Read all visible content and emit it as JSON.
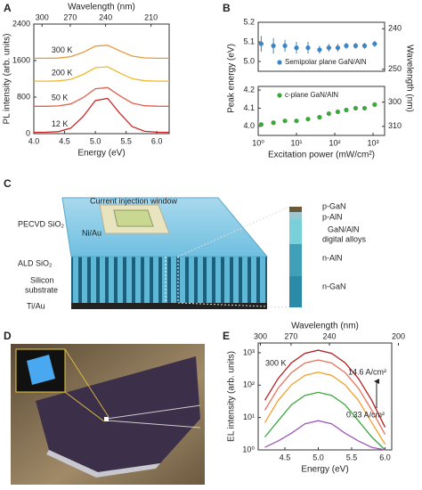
{
  "chart_data": [
    {
      "panel": "A",
      "type": "line",
      "xlabel": "Energy (eV)",
      "x2label": "Wavelength (nm)",
      "ylabel": "PL intensity (arb. units)",
      "xlim": [
        4.0,
        6.2
      ],
      "xticks": [
        {
          "value": 4,
          "label": "4.0"
        },
        4.5,
        {
          "value": 5,
          "label": "5.0"
        },
        5.5,
        {
          "value": 6,
          "label": "6.0"
        }
      ],
      "x2ticks": [
        300,
        270,
        240,
        210
      ],
      "ylim": [
        0,
        2400
      ],
      "yticks": [
        0,
        800,
        1600,
        2400
      ],
      "legend": "inline",
      "x": [
        4.0,
        4.2,
        4.4,
        4.6,
        4.8,
        5.0,
        5.2,
        5.4,
        5.6,
        5.8,
        6.0,
        6.2
      ],
      "series": [
        {
          "name": "300 K",
          "color": "#e89a3c",
          "values": [
            1650,
            1650,
            1655,
            1685,
            1780,
            1917,
            1935,
            1810,
            1698,
            1658,
            1650,
            1650
          ]
        },
        {
          "name": "200 K",
          "color": "#f0b830",
          "values": [
            1150,
            1150,
            1155,
            1188,
            1295,
            1444,
            1464,
            1325,
            1203,
            1158,
            1151,
            1150
          ]
        },
        {
          "name": "50 K",
          "color": "#e0604c",
          "values": [
            600,
            600,
            607,
            649,
            789,
            983,
            1009,
            828,
            669,
            611,
            601,
            600
          ]
        },
        {
          "name": "12 K",
          "color": "#cc2a2a",
          "values": [
            30,
            31,
            42,
            120,
            373,
            724,
            771,
            443,
            155,
            50,
            32,
            30
          ]
        }
      ]
    },
    {
      "panel": "B",
      "type": "scatter",
      "ylabel": "Peak energy (eV)",
      "y2label": "Wavelength (nm)",
      "xlog": true,
      "xlim": [
        1,
        2000
      ],
      "ylim": [
        4.95,
        5.2
      ],
      "yticks": [
        {
          "value": 5,
          "label": "5.0"
        },
        5.1,
        5.2
      ],
      "y2ticks": [
        240,
        250
      ],
      "legend": "lower right",
      "x": [
        1.2,
        2.5,
        5,
        10,
        20,
        40,
        70,
        120,
        200,
        350,
        600,
        1100
      ],
      "series": [
        {
          "name": "Semipolar plane GaN/AlN",
          "color": "#3a86c8",
          "values": [
            5.09,
            5.08,
            5.08,
            5.07,
            5.07,
            5.06,
            5.07,
            5.07,
            5.08,
            5.08,
            5.08,
            5.09
          ],
          "errors": [
            0.04,
            0.04,
            0.03,
            0.03,
            0.03,
            0.02,
            0.02,
            0.02,
            0.015,
            0.015,
            0.015,
            0.015
          ]
        }
      ]
    },
    {
      "panel": "",
      "type": "scatter",
      "xlabel": "Excitation power (mW/cm²)",
      "xlog": true,
      "xlim": [
        1,
        2000
      ],
      "xticks": [
        {
          "value": 1,
          "label": "10⁰"
        },
        {
          "value": 10,
          "label": "10¹"
        },
        {
          "value": 100,
          "label": "10²"
        },
        {
          "value": 1000,
          "label": "10³"
        }
      ],
      "ylim": [
        3.95,
        4.22
      ],
      "yticks": [
        {
          "value": 4,
          "label": "4.0"
        },
        4.1,
        4.2
      ],
      "y2ticks": [
        300,
        310
      ],
      "legend": "upper right",
      "x": [
        1.2,
        2.5,
        5,
        10,
        20,
        40,
        70,
        120,
        200,
        350,
        600,
        1100
      ],
      "series": [
        {
          "name": "c-plane GaN/AlN",
          "color": "#3aa83a",
          "values": [
            4.01,
            4.02,
            4.03,
            4.03,
            4.04,
            4.05,
            4.07,
            4.08,
            4.09,
            4.1,
            4.1,
            4.12
          ],
          "errors": [
            0.01,
            0.01,
            0.01,
            0.01,
            0.01,
            0.01,
            0.01,
            0.01,
            0.01,
            0.01,
            0.01,
            0.01
          ]
        }
      ]
    },
    {
      "panel": "E",
      "type": "line",
      "xlabel": "Energy (eV)",
      "x2label": "Wavelength (nm)",
      "ylabel": "EL intensity (arb. units)",
      "ylog": true,
      "xlim": [
        4.1,
        6.1
      ],
      "xticks": [
        4.5,
        {
          "value": 5,
          "label": "5.0"
        },
        5.5,
        {
          "value": 6,
          "label": "6.0"
        }
      ],
      "x2ticks": [
        300,
        270,
        240,
        200
      ],
      "ylim": [
        1,
        2000
      ],
      "yticks": [
        {
          "value": 1,
          "label": "10⁰"
        },
        {
          "value": 10,
          "label": "10¹"
        },
        {
          "value": 100,
          "label": "10²"
        },
        {
          "value": 1000,
          "label": "10³"
        }
      ],
      "annotations": [
        "300 K",
        "14.6 A/cm²",
        "0.33 A/cm²"
      ],
      "x": [
        4.2,
        4.4,
        4.6,
        4.8,
        5.0,
        5.2,
        5.4,
        5.6,
        5.8,
        6.0
      ],
      "series": [
        {
          "color": "#b02020",
          "values": [
            34,
            162,
            492,
            960,
            1200,
            960,
            492,
            162,
            34,
            5
          ]
        },
        {
          "color": "#e8705a",
          "values": [
            17,
            81,
            246,
            480,
            600,
            480,
            246,
            81,
            17,
            3
          ]
        },
        {
          "color": "#f0a030",
          "values": [
            7,
            34,
            103,
            200,
            250,
            200,
            103,
            34,
            7,
            1.5
          ]
        },
        {
          "color": "#3aa83a",
          "values": [
            2.5,
            8,
            25,
            48,
            60,
            48,
            25,
            8,
            2.5,
            1
          ]
        },
        {
          "color": "#9b59b6",
          "values": [
            1.2,
            1.9,
            3.3,
            6.4,
            8,
            6.4,
            3.3,
            1.9,
            1.2,
            1
          ]
        }
      ]
    }
  ],
  "diagram": {
    "panel": "C",
    "window": "Current injection window",
    "contact": "Ni/Au",
    "pecvd": "PECVD SiO₂",
    "ald": "ALD SiO₂",
    "substrate": [
      "Silicon",
      "substrate"
    ],
    "bottom": "Ti/Au",
    "layers": [
      "p-GaN",
      "p-AlN",
      "GaN/AlN",
      "digital alloys",
      "n-AlN",
      "n-GaN"
    ]
  },
  "photo": {
    "panel": "D"
  }
}
